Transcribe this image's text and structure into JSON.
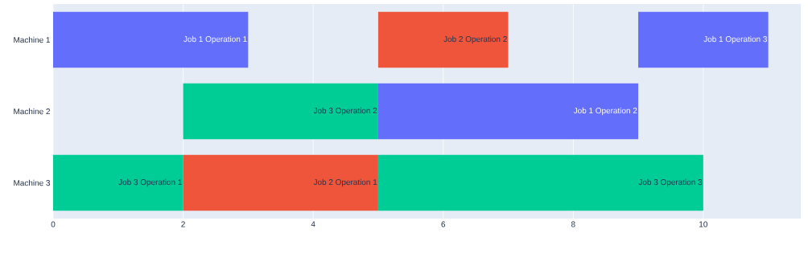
{
  "chart_data": {
    "type": "bar",
    "orientation": "horizontal",
    "categories": [
      "Machine 1",
      "Machine 2",
      "Machine 3"
    ],
    "series": [
      {
        "values": [
          3,
          3,
          2
        ],
        "base": [
          0,
          2,
          0
        ],
        "colors": [
          "#636efa",
          "#00cc96",
          "#00cc96"
        ],
        "value_labels": [
          "Job 1 Operation 1",
          "Job 3 Operation 2",
          "Job 3 Operation 1"
        ]
      },
      {
        "values": [
          2,
          4,
          3
        ],
        "base": [
          5,
          5,
          2
        ],
        "colors": [
          "#ef553b",
          "#636efa",
          "#ef553b"
        ],
        "value_labels": [
          "Job 2 Operation 2",
          "Job 1 Operation 2",
          "Job 2 Operation 1"
        ]
      },
      {
        "values": [
          2,
          null,
          5
        ],
        "base": [
          9,
          null,
          5
        ],
        "colors": [
          "#636efa",
          null,
          "#00cc96"
        ],
        "value_labels": [
          "Job 1 Operation 3",
          null,
          "Job 3 Operation 3"
        ]
      }
    ],
    "xlim": [
      0,
      11.5
    ],
    "xticks": [
      0,
      2,
      4,
      6,
      8,
      10
    ],
    "grid": "x"
  }
}
